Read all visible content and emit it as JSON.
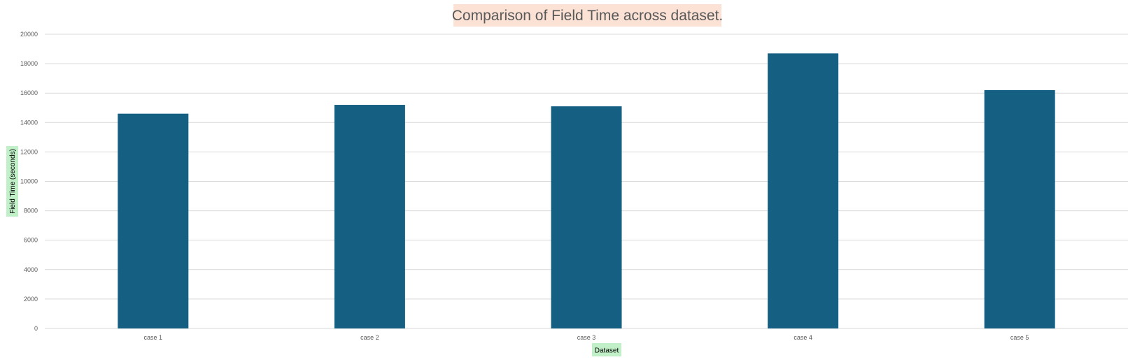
{
  "chart_data": {
    "type": "bar",
    "title": "Comparison of Field Time across dataset.",
    "xlabel": "Dataset",
    "ylabel": "Field Time (seconds)",
    "categories": [
      "case 1",
      "case 2",
      "case 3",
      "case 4",
      "case 5"
    ],
    "values": [
      14600,
      15200,
      15100,
      18700,
      16200
    ],
    "ylim": [
      0,
      20000
    ],
    "yticks": [
      0,
      2000,
      4000,
      6000,
      8000,
      10000,
      12000,
      14000,
      16000,
      18000,
      20000
    ],
    "grid": true,
    "legend": "none",
    "colors": {
      "bar": "#156082",
      "title_background": "#FBE2D5",
      "axis_title_background": "#C1F0C8",
      "gridline": "#D9D9D9"
    }
  }
}
